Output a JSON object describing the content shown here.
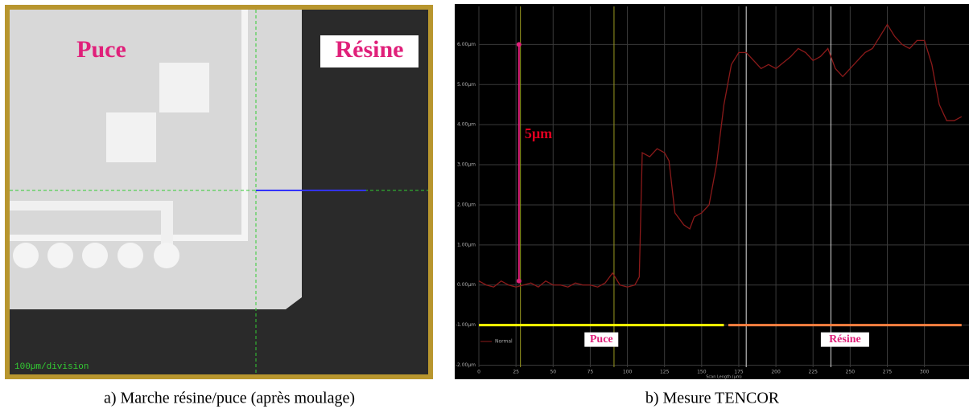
{
  "image": {
    "labels": [
      "Puce",
      "Résine"
    ],
    "scale_label": "100µm/division"
  },
  "captions": [
    "a)  Marche résine/puce (après moulage)",
    "b)  Mesure TENCOR"
  ],
  "chart_data": {
    "type": "line",
    "x_label": "Scan Length (µm)",
    "legend": "Normal",
    "xlim": [
      0,
      330
    ],
    "ylim": [
      -2.05,
      6.95
    ],
    "xticks": [
      0,
      25,
      50,
      75,
      100,
      125,
      150,
      175,
      200,
      225,
      250,
      275,
      300
    ],
    "yticks": [
      {
        "value": -2,
        "label": "-2.00µm"
      },
      {
        "value": -1,
        "label": "-1.00µm"
      },
      {
        "value": 0,
        "label": "0.00µm"
      },
      {
        "value": 1,
        "label": "1.00µm"
      },
      {
        "value": 2,
        "label": "2.00µm"
      },
      {
        "value": 3,
        "label": "3.00µm"
      },
      {
        "value": 4,
        "label": "4.00µm"
      },
      {
        "value": 5,
        "label": "5.00µm"
      },
      {
        "value": 6,
        "label": "6.00µm"
      }
    ],
    "grid": true,
    "series": [
      {
        "name": "Normal",
        "color": "#8b1a1a",
        "x": [
          0,
          5,
          10,
          15,
          20,
          25,
          30,
          35,
          40,
          45,
          50,
          55,
          60,
          65,
          70,
          75,
          80,
          85,
          90,
          95,
          100,
          105,
          108,
          110,
          115,
          120,
          125,
          128,
          132,
          138,
          142,
          145,
          150,
          155,
          160,
          165,
          170,
          175,
          180,
          185,
          190,
          195,
          200,
          210,
          215,
          220,
          225,
          230,
          235,
          240,
          245,
          250,
          255,
          260,
          265,
          270,
          275,
          280,
          285,
          290,
          295,
          300,
          305,
          310,
          315,
          320,
          325
        ],
        "values": [
          0.1,
          0,
          -0.05,
          0.1,
          0,
          -0.05,
          0,
          0.05,
          -0.05,
          0.1,
          0,
          0,
          -0.05,
          0.05,
          0,
          0,
          -0.05,
          0.05,
          0.3,
          0,
          -0.05,
          0,
          0.2,
          3.3,
          3.2,
          3.4,
          3.3,
          3.1,
          1.8,
          1.5,
          1.4,
          1.7,
          1.8,
          2.0,
          3.0,
          4.5,
          5.5,
          5.8,
          5.8,
          5.6,
          5.4,
          5.5,
          5.4,
          5.7,
          5.9,
          5.8,
          5.6,
          5.7,
          5.9,
          5.4,
          5.2,
          5.4,
          5.6,
          5.8,
          5.9,
          6.2,
          6.5,
          6.2,
          6.0,
          5.9,
          6.1,
          6.1,
          5.5,
          4.5,
          4.1,
          4.1,
          4.2
        ]
      }
    ],
    "cursors": [
      28,
      91
    ],
    "markers": [
      180,
      237
    ],
    "step": {
      "text": "5µm",
      "x": 27,
      "y": [
        0.1,
        6.0
      ]
    },
    "ranges": [
      {
        "label": "Puce",
        "x": [
          0,
          165
        ],
        "y": -1,
        "color": "#ffff00"
      },
      {
        "label": "Résine",
        "x": [
          168,
          325
        ],
        "y": -1,
        "color": "#ff8040"
      }
    ]
  }
}
